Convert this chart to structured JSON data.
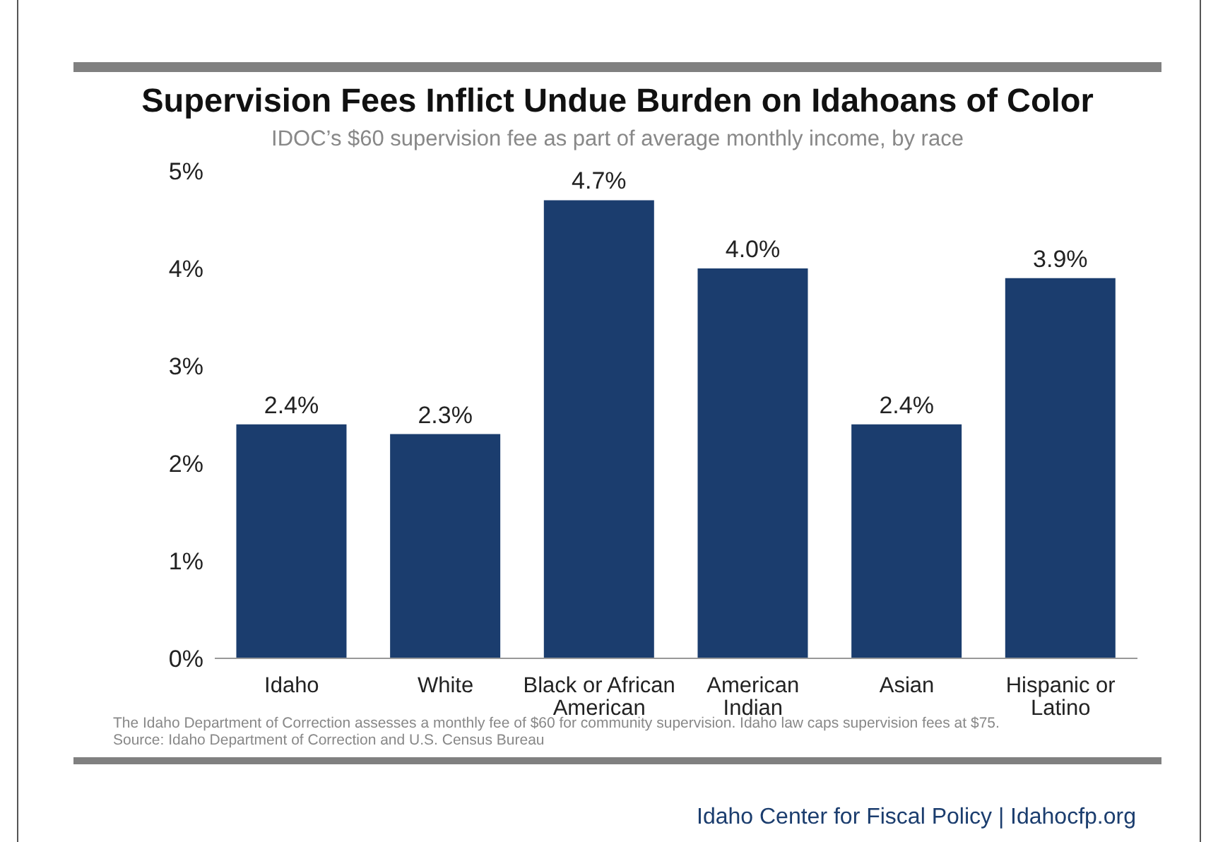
{
  "chart_data": {
    "type": "bar",
    "title": "Supervision Fees Inflict Undue Burden on Idahoans of Color",
    "subtitle": "IDOC’s $60 supervision fee as part of average monthly income, by race",
    "categories": [
      "Idaho",
      "White",
      "Black or African American",
      "American Indian",
      "Asian",
      "Hispanic or Latino"
    ],
    "values": [
      2.4,
      2.3,
      4.7,
      4.0,
      2.4,
      3.9
    ],
    "color": "#1b3d6e",
    "value_labels": [
      "2.4%",
      "2.3%",
      "4.7%",
      "4.0%",
      "2.4%",
      "3.9%"
    ],
    "ylim": [
      0,
      5
    ],
    "yticks": [
      {
        "value": 0,
        "label": "0%"
      },
      {
        "value": 1,
        "label": "1%"
      },
      {
        "value": 2,
        "label": "2%"
      },
      {
        "value": 3,
        "label": "3%"
      },
      {
        "value": 4,
        "label": "4%"
      },
      {
        "value": 5,
        "label": "5%"
      }
    ],
    "grid": false,
    "legend": false,
    "annotations": [
      "The Idaho Department of Correction assesses a monthly fee of $60 for community supervision. Idaho law caps supervision fees at $75.",
      "Source: Idaho Department of Correction and U.S. Census Bureau",
      "Idaho Center for Fiscal Policy | Idahocfp.org"
    ]
  }
}
